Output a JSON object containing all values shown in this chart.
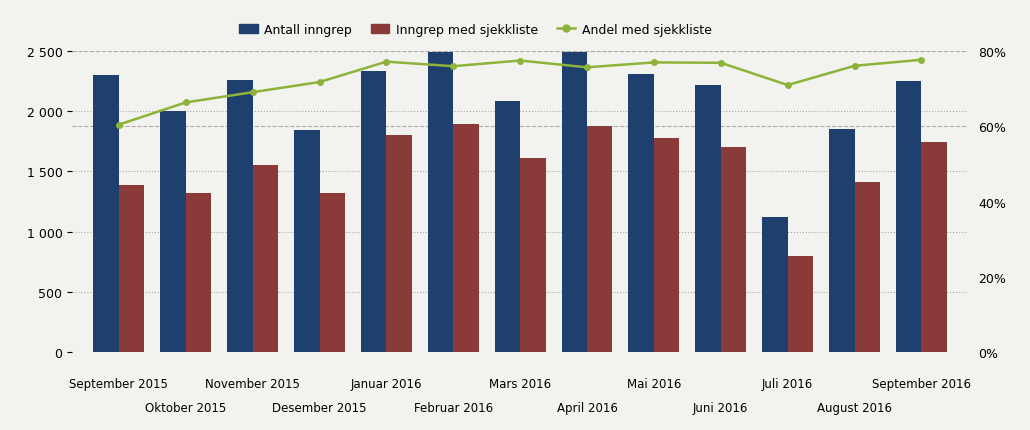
{
  "months": [
    "September 2015",
    "Oktober 2015",
    "November 2015",
    "Desember 2015",
    "Januar 2016",
    "Februar 2016",
    "Mars 2016",
    "April 2016",
    "Mai 2016",
    "Juni 2016",
    "Juli 2016",
    "August 2016",
    "September 2016"
  ],
  "antall_inngrep": [
    2300,
    2000,
    2255,
    1840,
    2335,
    2490,
    2085,
    2490,
    2310,
    2220,
    1120,
    1855,
    2245
  ],
  "inngrep_med_sjekkliste": [
    1390,
    1325,
    1555,
    1320,
    1800,
    1890,
    1615,
    1880,
    1775,
    1705,
    795,
    1410,
    1745
  ],
  "andel_med_sjekkliste": [
    0.604,
    0.663,
    0.69,
    0.717,
    0.771,
    0.759,
    0.774,
    0.756,
    0.769,
    0.768,
    0.709,
    0.76,
    0.776
  ],
  "bar_color_blue": "#1f3f6e",
  "bar_color_red": "#8b3a3a",
  "line_color": "#8db33a",
  "background_color": "#f2f2ee",
  "legend_labels": [
    "Antall inngrep",
    "Inngrep med sjekkliste",
    "Andel med sjekkliste"
  ],
  "ylim_left": [
    0,
    2500
  ],
  "ylim_right": [
    0,
    0.8
  ],
  "yticks_left": [
    0,
    500,
    1000,
    1500,
    2000,
    2500
  ],
  "yticks_right": [
    0.0,
    0.2,
    0.4,
    0.6,
    0.8
  ],
  "ytick_labels_left": [
    "0",
    "500",
    "1 000",
    "1 500",
    "2 000",
    "2 500"
  ],
  "ytick_labels_right": [
    "0%",
    "20%",
    "40%",
    "60%",
    "80%"
  ]
}
